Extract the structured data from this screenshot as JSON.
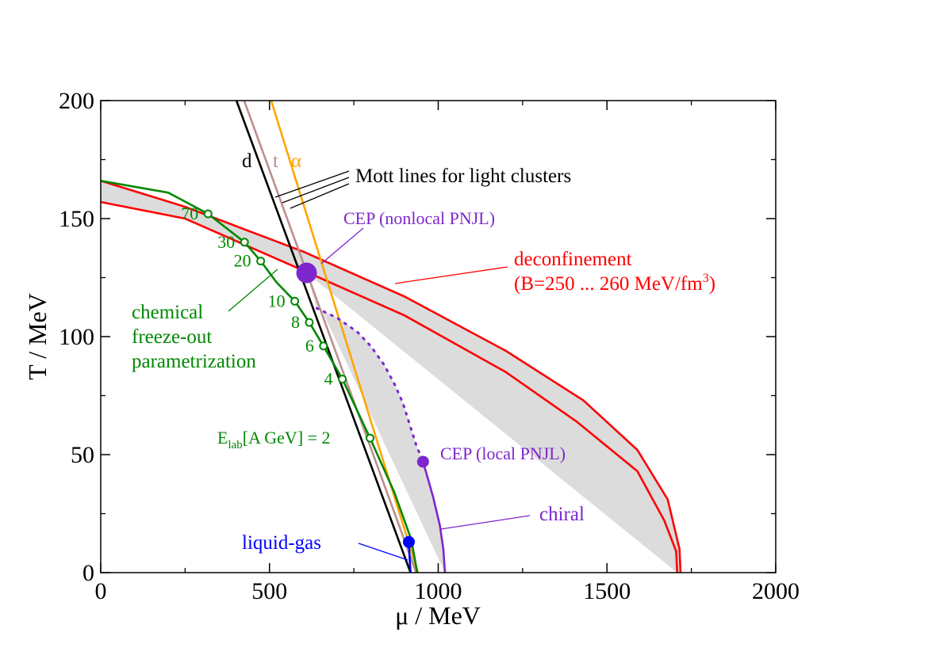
{
  "chart_data": {
    "type": "line",
    "title": "",
    "xlabel": "μ / MeV",
    "ylabel": "T / MeV",
    "xlim": [
      0,
      2000
    ],
    "ylim": [
      0,
      200
    ],
    "x_ticks": [
      0,
      500,
      1000,
      1500,
      2000
    ],
    "y_ticks": [
      0,
      50,
      100,
      150,
      200
    ],
    "x_tick_labels": [
      "0",
      "500",
      "1000",
      "1500",
      "2000"
    ],
    "y_tick_labels": [
      "0",
      "50",
      "100",
      "150",
      "200"
    ],
    "colors": {
      "deconfinement": "#ff0000",
      "freezeout": "#008800",
      "mott_d": "#000000",
      "mott_t": "#bc8f8f",
      "mott_alpha": "#ffa500",
      "chiral": "#7d26cd",
      "liquid_gas": "#0000ff",
      "band_fill": "#dcdcdc"
    },
    "deconfinement_upper": [
      [
        0,
        166
      ],
      [
        250,
        155
      ],
      [
        600,
        136
      ],
      [
        900,
        117
      ],
      [
        1200,
        94
      ],
      [
        1430,
        73
      ],
      [
        1590,
        52
      ],
      [
        1680,
        31
      ],
      [
        1715,
        10
      ],
      [
        1718,
        0
      ]
    ],
    "deconfinement_lower": [
      [
        0,
        157
      ],
      [
        250,
        150
      ],
      [
        600,
        128
      ],
      [
        900,
        109
      ],
      [
        1200,
        85
      ],
      [
        1410,
        64
      ],
      [
        1590,
        43
      ],
      [
        1670,
        22
      ],
      [
        1705,
        9
      ],
      [
        1708,
        0
      ]
    ],
    "freezeout_curve": [
      [
        0,
        166
      ],
      [
        200,
        161
      ],
      [
        318,
        152
      ],
      [
        426,
        140
      ],
      [
        474,
        132
      ],
      [
        521,
        123
      ],
      [
        575,
        115
      ],
      [
        618,
        106
      ],
      [
        660,
        96
      ],
      [
        716,
        82
      ],
      [
        798,
        57
      ],
      [
        870,
        34
      ],
      [
        920,
        14
      ],
      [
        938,
        0
      ]
    ],
    "freezeout_energies": [
      {
        "label": "70",
        "mu": 318,
        "T": 152
      },
      {
        "label": "30",
        "mu": 426,
        "T": 140
      },
      {
        "label": "20",
        "mu": 474,
        "T": 132
      },
      {
        "label": "10",
        "mu": 575,
        "T": 115
      },
      {
        "label": "8",
        "mu": 618,
        "T": 106
      },
      {
        "label": "6",
        "mu": 660,
        "T": 96
      },
      {
        "label": "4",
        "mu": 716,
        "T": 82
      },
      {
        "label": "2",
        "mu": 798,
        "T": 57
      }
    ],
    "mott_d": [
      [
        402,
        200
      ],
      [
        918,
        0
      ]
    ],
    "mott_t": [
      [
        425,
        200
      ],
      [
        935,
        0
      ]
    ],
    "mott_alpha": [
      [
        505,
        200
      ],
      [
        940,
        0
      ]
    ],
    "cep_nonlocal": {
      "mu": 610,
      "T": 127
    },
    "cep_local": {
      "mu": 955,
      "T": 47
    },
    "dotted_crossover": [
      [
        640,
        112
      ],
      [
        700,
        108
      ],
      [
        760,
        102
      ],
      [
        800,
        96
      ],
      [
        840,
        88
      ],
      [
        870,
        80
      ],
      [
        895,
        72
      ],
      [
        915,
        63
      ],
      [
        935,
        54
      ],
      [
        955,
        47
      ]
    ],
    "chiral_line": [
      [
        955,
        47
      ],
      [
        985,
        32
      ],
      [
        1005,
        20
      ],
      [
        1015,
        10
      ],
      [
        1020,
        0
      ]
    ],
    "liquid_gas_point": {
      "mu": 913,
      "T": 13
    },
    "liquid_gas_line": [
      [
        913,
        13
      ],
      [
        915,
        7
      ],
      [
        918,
        0
      ]
    ],
    "annotations": {
      "mott_d_letter": "d",
      "mott_t_letter": "t",
      "mott_alpha_letter": "α",
      "mott_lines": "Mott lines for light clusters",
      "cep_nonlocal": "CEP (nonlocal PNJL)",
      "cep_local": "CEP (local PNJL)",
      "deconfinement": "deconfinement",
      "deconfinement_bag_prefix": "(B=250 ... 260 MeV/fm",
      "deconfinement_bag_exp": "3",
      "deconfinement_bag_suffix": ")",
      "chemical_line1": "chemical",
      "chemical_line2": "freeze-out",
      "chemical_line3": "parametrization",
      "elab_prefix": "E",
      "elab_sub": "lab",
      "elab_suffix": "[A GeV] = 2",
      "chiral": "chiral",
      "liquid_gas": "liquid-gas"
    }
  }
}
